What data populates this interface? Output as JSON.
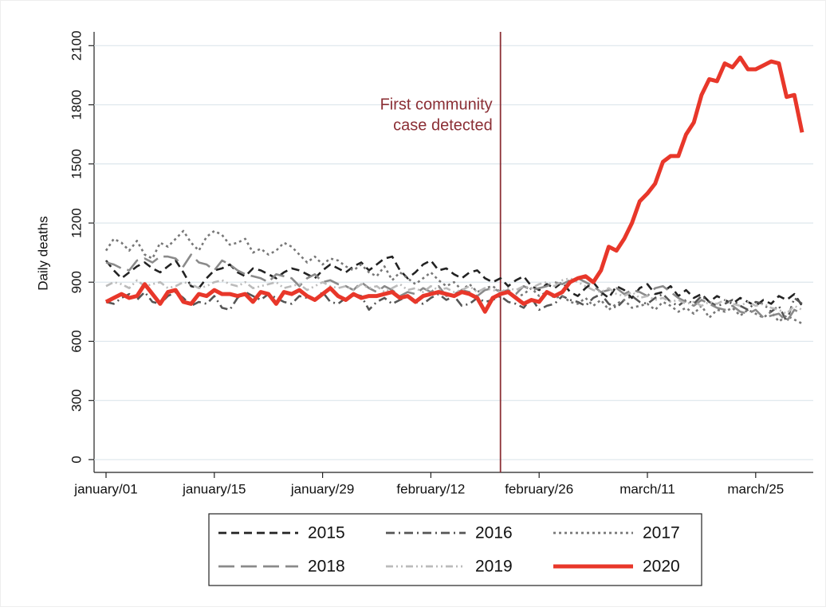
{
  "chart_data": {
    "type": "line",
    "y_label": "Daily deaths",
    "ylim": [
      -65,
      2170
    ],
    "yticks": [
      0,
      300,
      600,
      900,
      1200,
      1500,
      1800,
      2100
    ],
    "grid": true,
    "legend": "bottom",
    "annotation": {
      "lines": [
        "First community",
        "case detected"
      ],
      "x": 51,
      "color": "#8b2f35"
    },
    "categories": [
      "january/01",
      null,
      null,
      null,
      null,
      null,
      null,
      null,
      null,
      null,
      null,
      null,
      null,
      null,
      "january/15",
      null,
      null,
      null,
      null,
      null,
      null,
      null,
      null,
      null,
      null,
      null,
      null,
      null,
      "january/29",
      null,
      null,
      null,
      null,
      null,
      null,
      null,
      null,
      null,
      null,
      null,
      null,
      null,
      "february/12",
      null,
      null,
      null,
      null,
      null,
      null,
      null,
      null,
      null,
      null,
      null,
      null,
      null,
      "february/26",
      null,
      null,
      null,
      null,
      null,
      null,
      null,
      null,
      null,
      null,
      null,
      null,
      null,
      "march/11",
      null,
      null,
      null,
      null,
      null,
      null,
      null,
      null,
      null,
      null,
      null,
      null,
      null,
      "march/25",
      null,
      null,
      null,
      null,
      null,
      null
    ],
    "series": [
      {
        "name": "2015",
        "color": "#222222",
        "style": "dash",
        "values": [
          1010,
          960,
          920,
          950,
          980,
          1000,
          970,
          950,
          980,
          1010,
          950,
          880,
          870,
          920,
          960,
          970,
          990,
          950,
          930,
          970,
          960,
          940,
          920,
          950,
          970,
          960,
          940,
          920,
          960,
          990,
          970,
          950,
          980,
          1000,
          960,
          990,
          1020,
          1030,
          960,
          920,
          950,
          990,
          1010,
          960,
          970,
          940,
          920,
          950,
          960,
          920,
          900,
          920,
          880,
          910,
          930,
          880,
          860,
          890,
          870,
          900,
          850,
          830,
          870,
          900,
          850,
          820,
          880,
          860,
          820,
          870,
          890,
          840,
          850,
          880,
          830,
          860,
          820,
          840,
          800,
          830,
          810,
          790,
          820,
          800,
          780,
          810,
          790,
          830,
          810,
          840,
          780
        ]
      },
      {
        "name": "2016",
        "color": "#555555",
        "style": "dashdot",
        "values": [
          800,
          790,
          820,
          840,
          810,
          850,
          800,
          790,
          830,
          850,
          820,
          780,
          800,
          790,
          830,
          770,
          760,
          820,
          850,
          830,
          810,
          840,
          820,
          800,
          790,
          830,
          820,
          810,
          850,
          800,
          790,
          820,
          840,
          830,
          760,
          800,
          820,
          790,
          810,
          830,
          800,
          790,
          820,
          840,
          810,
          830,
          780,
          790,
          820,
          800,
          810,
          830,
          800,
          790,
          770,
          820,
          760,
          780,
          790,
          830,
          810,
          800,
          780,
          820,
          840,
          790,
          770,
          810,
          830,
          800,
          790,
          820,
          840,
          800,
          780,
          810,
          790,
          830,
          800,
          780,
          790,
          810,
          780,
          760,
          800,
          790,
          750,
          780,
          700,
          820,
          790
        ]
      },
      {
        "name": "2017",
        "color": "#777777",
        "style": "dot",
        "values": [
          1060,
          1120,
          1100,
          1060,
          1110,
          1040,
          1020,
          1100,
          1080,
          1120,
          1160,
          1100,
          1060,
          1130,
          1160,
          1140,
          1090,
          1100,
          1120,
          1050,
          1070,
          1040,
          1060,
          1100,
          1080,
          1040,
          1000,
          1030,
          990,
          1020,
          1010,
          980,
          960,
          990,
          950,
          930,
          980,
          910,
          950,
          920,
          890,
          920,
          950,
          910,
          880,
          900,
          860,
          890,
          850,
          870,
          880,
          850,
          860,
          820,
          840,
          870,
          830,
          850,
          820,
          830,
          800,
          790,
          820,
          780,
          810,
          760,
          790,
          810,
          770,
          780,
          790,
          760,
          800,
          780,
          750,
          770,
          740,
          780,
          720,
          760,
          750,
          770,
          730,
          760,
          740,
          720,
          750,
          700,
          730,
          710,
          690
        ]
      },
      {
        "name": "2018",
        "color": "#8a8a8a",
        "style": "longdash",
        "values": [
          1000,
          990,
          970,
          960,
          1010,
          1020,
          1000,
          1030,
          1030,
          1020,
          980,
          1040,
          1000,
          990,
          960,
          1010,
          990,
          960,
          940,
          930,
          920,
          900,
          940,
          930,
          920,
          880,
          920,
          940,
          900,
          910,
          890,
          880,
          860,
          900,
          870,
          850,
          880,
          860,
          830,
          850,
          840,
          870,
          850,
          880,
          830,
          840,
          860,
          850,
          830,
          860,
          870,
          850,
          860,
          840,
          880,
          860,
          870,
          880,
          900,
          890,
          910,
          920,
          900,
          880,
          850,
          860,
          870,
          840,
          860,
          850,
          830,
          870,
          880,
          850,
          820,
          800,
          780,
          810,
          790,
          770,
          760,
          780,
          750,
          740,
          760,
          720,
          730,
          740,
          700,
          760,
          740
        ]
      },
      {
        "name": "2019",
        "color": "#bbbbbb",
        "style": "dashdotdot",
        "values": [
          880,
          900,
          890,
          870,
          910,
          880,
          890,
          900,
          870,
          880,
          900,
          890,
          870,
          880,
          900,
          910,
          890,
          880,
          900,
          870,
          880,
          890,
          900,
          870,
          880,
          890,
          860,
          880,
          900,
          880,
          870,
          880,
          860,
          890,
          870,
          880,
          850,
          870,
          890,
          860,
          870,
          850,
          880,
          860,
          870,
          850,
          860,
          880,
          850,
          870,
          860,
          850,
          870,
          860,
          880,
          870,
          890,
          900,
          880,
          910,
          920,
          900,
          880,
          860,
          850,
          870,
          840,
          830,
          850,
          820,
          830,
          810,
          820,
          800,
          810,
          790,
          800,
          780,
          800,
          790,
          810,
          790,
          780,
          800,
          780,
          790,
          770,
          760,
          740,
          780,
          760
        ]
      },
      {
        "name": "2020",
        "color": "#e8372a",
        "style": "solid",
        "values": [
          800,
          820,
          840,
          820,
          830,
          890,
          840,
          790,
          850,
          860,
          800,
          790,
          840,
          830,
          860,
          840,
          840,
          830,
          840,
          800,
          850,
          840,
          790,
          850,
          840,
          860,
          830,
          810,
          840,
          870,
          830,
          810,
          840,
          820,
          830,
          830,
          840,
          850,
          820,
          830,
          800,
          830,
          840,
          850,
          840,
          830,
          850,
          840,
          820,
          750,
          820,
          840,
          850,
          820,
          790,
          810,
          800,
          850,
          830,
          850,
          900,
          920,
          930,
          900,
          960,
          1080,
          1060,
          1120,
          1200,
          1310,
          1350,
          1400,
          1510,
          1540,
          1540,
          1650,
          1710,
          1850,
          1930,
          1920,
          2010,
          1990,
          2040,
          1980,
          1980,
          2000,
          2020,
          2010,
          1840,
          1850,
          1660
        ]
      }
    ]
  }
}
